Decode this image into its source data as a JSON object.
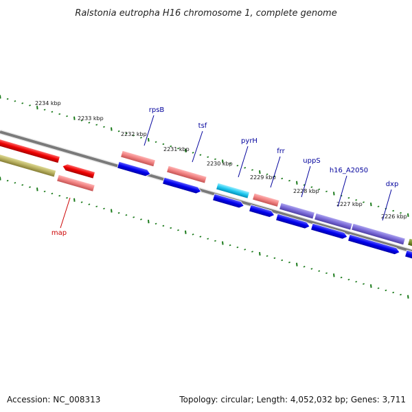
{
  "title": "Ralstonia eutropha H16 chromosome 1, complete genome",
  "footer": {
    "accession": "Accession: NC_008313",
    "summary": "Topology: circular; Length: 4,052,032 bp; Genes: 3,711"
  },
  "colors": {
    "backbone": "#777777",
    "tick": "#1a7a1a",
    "label_above": "#00009c",
    "label_below": "#cc0000"
  },
  "ruler_ticks": [
    {
      "label": "2234 kbp",
      "pos": 2234
    },
    {
      "label": "2233 kbp",
      "pos": 2233
    },
    {
      "label": "2232 kbp",
      "pos": 2232
    },
    {
      "label": "2231 kbp",
      "pos": 2231
    },
    {
      "label": "2230 kbp",
      "pos": 2230
    },
    {
      "label": "2229 kbp",
      "pos": 2229
    },
    {
      "label": "2228 kbp",
      "pos": 2228
    },
    {
      "label": "2227 kbp",
      "pos": 2227
    },
    {
      "label": "2226 kbp",
      "pos": 2226
    }
  ],
  "gene_labels": [
    {
      "name": "rpsB",
      "side": "above"
    },
    {
      "name": "tsf",
      "side": "above"
    },
    {
      "name": "pyrH",
      "side": "above"
    },
    {
      "name": "frr",
      "side": "above"
    },
    {
      "name": "uppS",
      "side": "above"
    },
    {
      "name": "h16_A2050",
      "side": "above"
    },
    {
      "name": "dxp",
      "side": "above"
    },
    {
      "name": "map",
      "side": "below"
    }
  ]
}
